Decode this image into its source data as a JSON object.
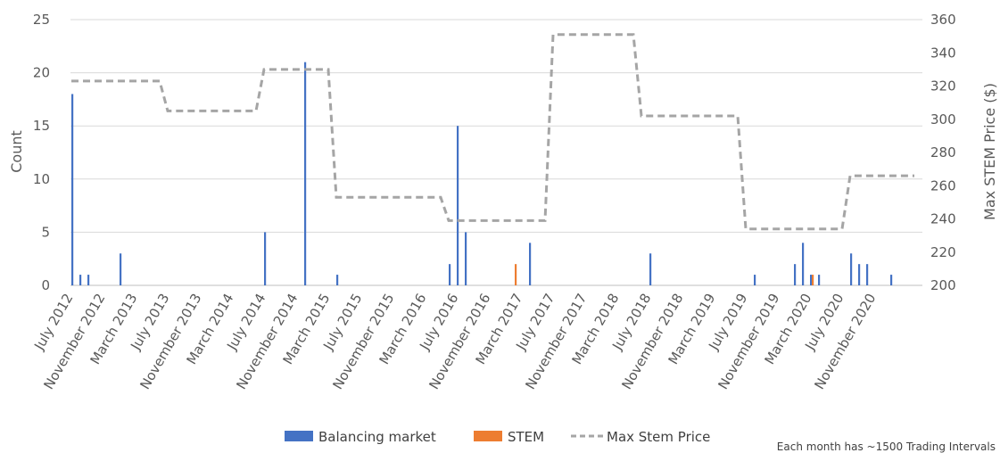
{
  "chart_data": {
    "type": "bar",
    "ylabel": "Count",
    "y2label": "Max STEM Price ($)",
    "ylim": [
      0,
      25
    ],
    "y2lim": [
      200,
      360
    ],
    "yticks": [
      0,
      5,
      10,
      15,
      20,
      25
    ],
    "y2ticks": [
      200,
      220,
      240,
      260,
      280,
      300,
      320,
      340,
      360
    ],
    "grid": true,
    "legend_position": "bottom",
    "note": "Each month has ~1500 Trading Intervals",
    "months_start": "July 2012",
    "month_count": 106,
    "x_tick_labels": [
      "July 2012",
      "November 2012",
      "March 2013",
      "July 2013",
      "November 2013",
      "March 2014",
      "July 2014",
      "November 2014",
      "March 2015",
      "July 2015",
      "November 2015",
      "March 2016",
      "July 2016",
      "November 2016",
      "March 2017",
      "July 2017",
      "November 2017",
      "March 2018",
      "July 2018",
      "November 2018",
      "March 2019",
      "July 2019",
      "November 2019",
      "March 2020",
      "July 2020",
      "November 2020"
    ],
    "series": [
      {
        "name": "Balancing market",
        "kind": "bar",
        "color": "#4472C4",
        "points": [
          {
            "month": "July 2012",
            "value": 18
          },
          {
            "month": "August 2012",
            "value": 1
          },
          {
            "month": "September 2012",
            "value": 1
          },
          {
            "month": "January 2013",
            "value": 3
          },
          {
            "month": "July 2014",
            "value": 5
          },
          {
            "month": "December 2014",
            "value": 21
          },
          {
            "month": "April 2015",
            "value": 1
          },
          {
            "month": "June 2016",
            "value": 2
          },
          {
            "month": "July 2016",
            "value": 15
          },
          {
            "month": "August 2016",
            "value": 5
          },
          {
            "month": "April 2017",
            "value": 4
          },
          {
            "month": "July 2018",
            "value": 3
          },
          {
            "month": "August 2019",
            "value": 1
          },
          {
            "month": "January 2020",
            "value": 2
          },
          {
            "month": "February 2020",
            "value": 4
          },
          {
            "month": "March 2020",
            "value": 1
          },
          {
            "month": "April 2020",
            "value": 1
          },
          {
            "month": "August 2020",
            "value": 3
          },
          {
            "month": "September 2020",
            "value": 2
          },
          {
            "month": "October 2020",
            "value": 2
          },
          {
            "month": "January 2021",
            "value": 1
          }
        ]
      },
      {
        "name": "STEM",
        "kind": "bar",
        "color": "#ED7D31",
        "points": [
          {
            "month": "February 2017",
            "value": 2
          },
          {
            "month": "March 2020",
            "value": 1
          }
        ]
      },
      {
        "name": "Max Stem Price",
        "kind": "line",
        "axis": "right",
        "color": "#A5A5A5",
        "dashed": true,
        "points": [
          {
            "month": "July 2012",
            "value": 323
          },
          {
            "month": "June 2013",
            "value": 323
          },
          {
            "month": "July 2013",
            "value": 305
          },
          {
            "month": "June 2014",
            "value": 305
          },
          {
            "month": "July 2014",
            "value": 330
          },
          {
            "month": "March 2015",
            "value": 330
          },
          {
            "month": "April 2015",
            "value": 253
          },
          {
            "month": "May 2016",
            "value": 253
          },
          {
            "month": "June 2016",
            "value": 239
          },
          {
            "month": "June 2017",
            "value": 239
          },
          {
            "month": "July 2017",
            "value": 351
          },
          {
            "month": "May 2018",
            "value": 351
          },
          {
            "month": "June 2018",
            "value": 302
          },
          {
            "month": "June 2019",
            "value": 302
          },
          {
            "month": "July 2019",
            "value": 234
          },
          {
            "month": "July 2020",
            "value": 234
          },
          {
            "month": "August 2020",
            "value": 266
          },
          {
            "month": "April 2021",
            "value": 266
          }
        ]
      }
    ]
  }
}
